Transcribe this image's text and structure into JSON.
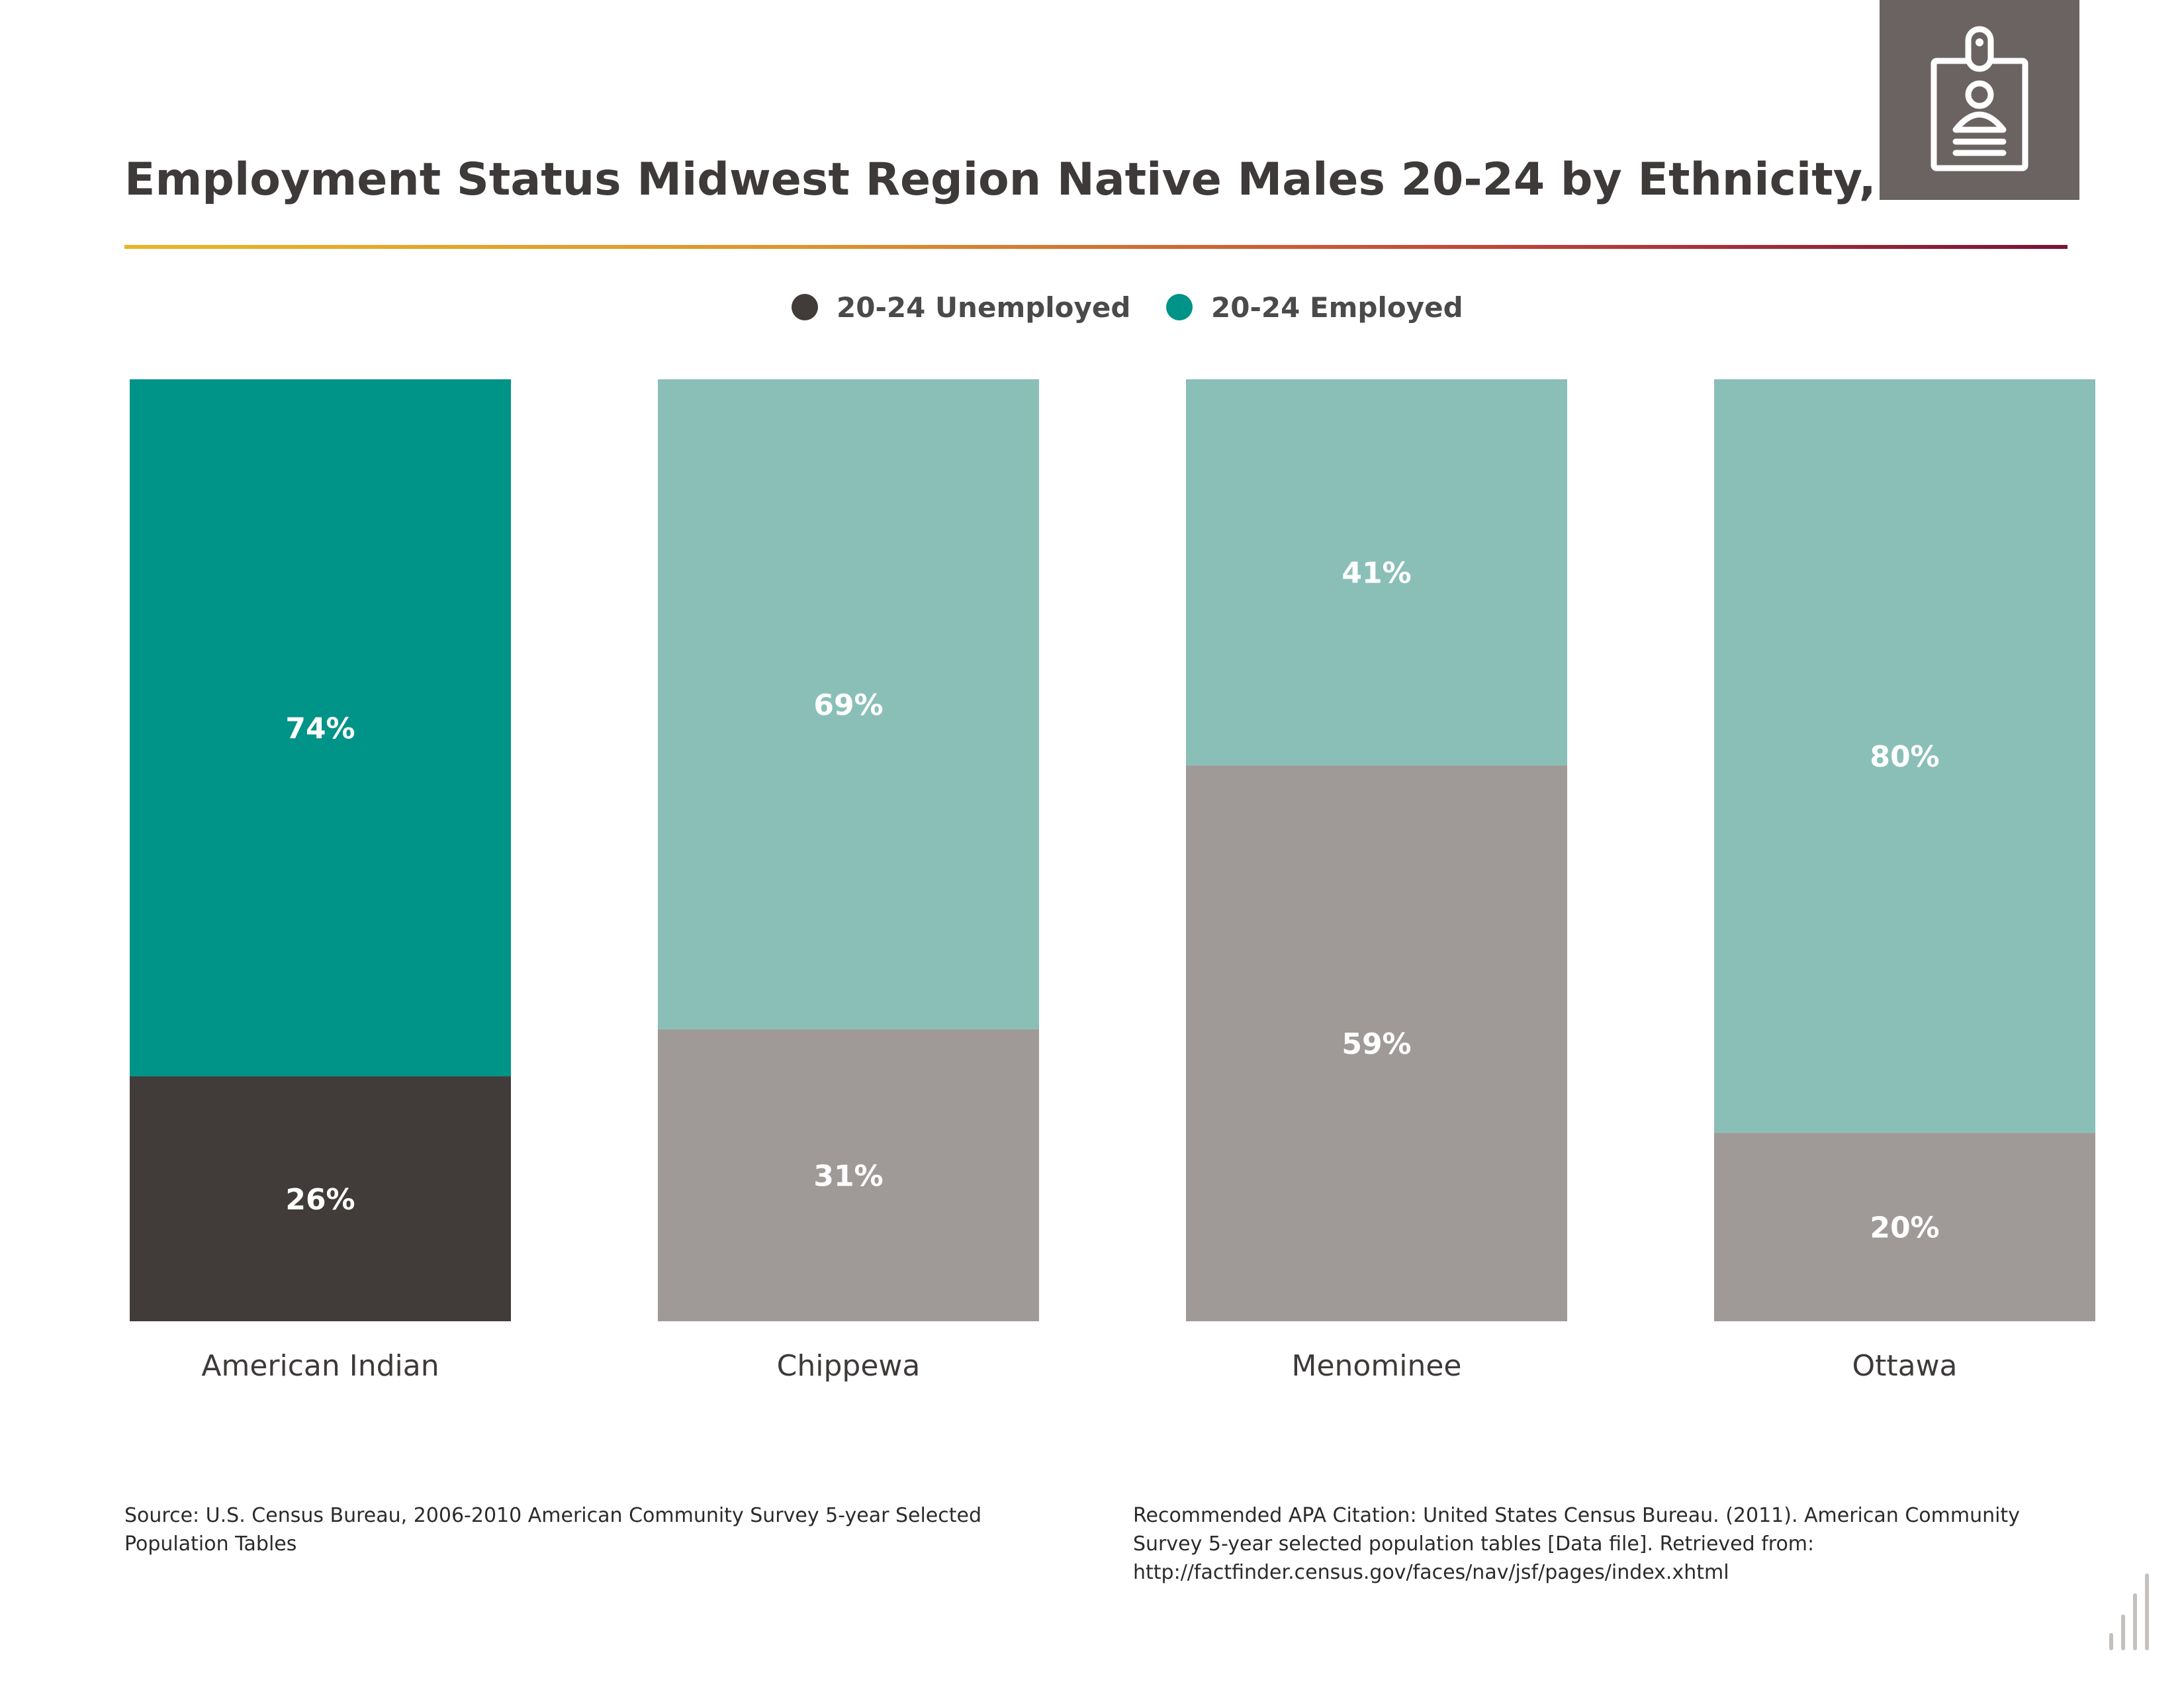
{
  "header": {
    "title": "Employment Status Midwest Region Native Males 20-24 by Ethnicity,",
    "badge_icon": "id-badge-icon"
  },
  "colors": {
    "employed_dark": "#009387",
    "employed_light": "#8abfb8",
    "unemployed_dark": "#413c39",
    "unemployed_light": "#9f9a98",
    "badge_bg": "#6b6362",
    "rule_gradient": [
      "#e8b528",
      "#e07a2c",
      "#b23a3a",
      "#7c1236"
    ]
  },
  "legend": [
    {
      "label": "20-24 Unemployed",
      "color": "#413c39"
    },
    {
      "label": "20-24 Employed",
      "color": "#009387"
    }
  ],
  "chart_data": {
    "type": "bar",
    "stacked": true,
    "categories": [
      "American Indian",
      "Chippewa",
      "Menominee",
      "Ottawa"
    ],
    "series": [
      {
        "name": "20-24 Unemployed",
        "values": [
          26,
          31,
          59,
          20
        ],
        "labels": [
          "26%",
          "31%",
          "59%",
          "20%"
        ]
      },
      {
        "name": "20-24 Employed",
        "values": [
          74,
          69,
          41,
          80
        ],
        "labels": [
          "74%",
          "69%",
          "41%",
          "80%"
        ]
      }
    ],
    "highlighted_category": "American Indian",
    "ylim": [
      0,
      100
    ],
    "grid": false,
    "legend_position": "top-center"
  },
  "footer": {
    "source": "Source:  U.S. Census Bureau, 2006-2010 American Community Survey 5-year Selected Population Tables",
    "citation": "Recommended APA Citation: United States Census Bureau. (2011). American Community Survey 5-year selected population tables [Data file]. Retrieved from: http://factfinder.census.gov/faces/nav/jsf/pages/index.xhtml"
  }
}
